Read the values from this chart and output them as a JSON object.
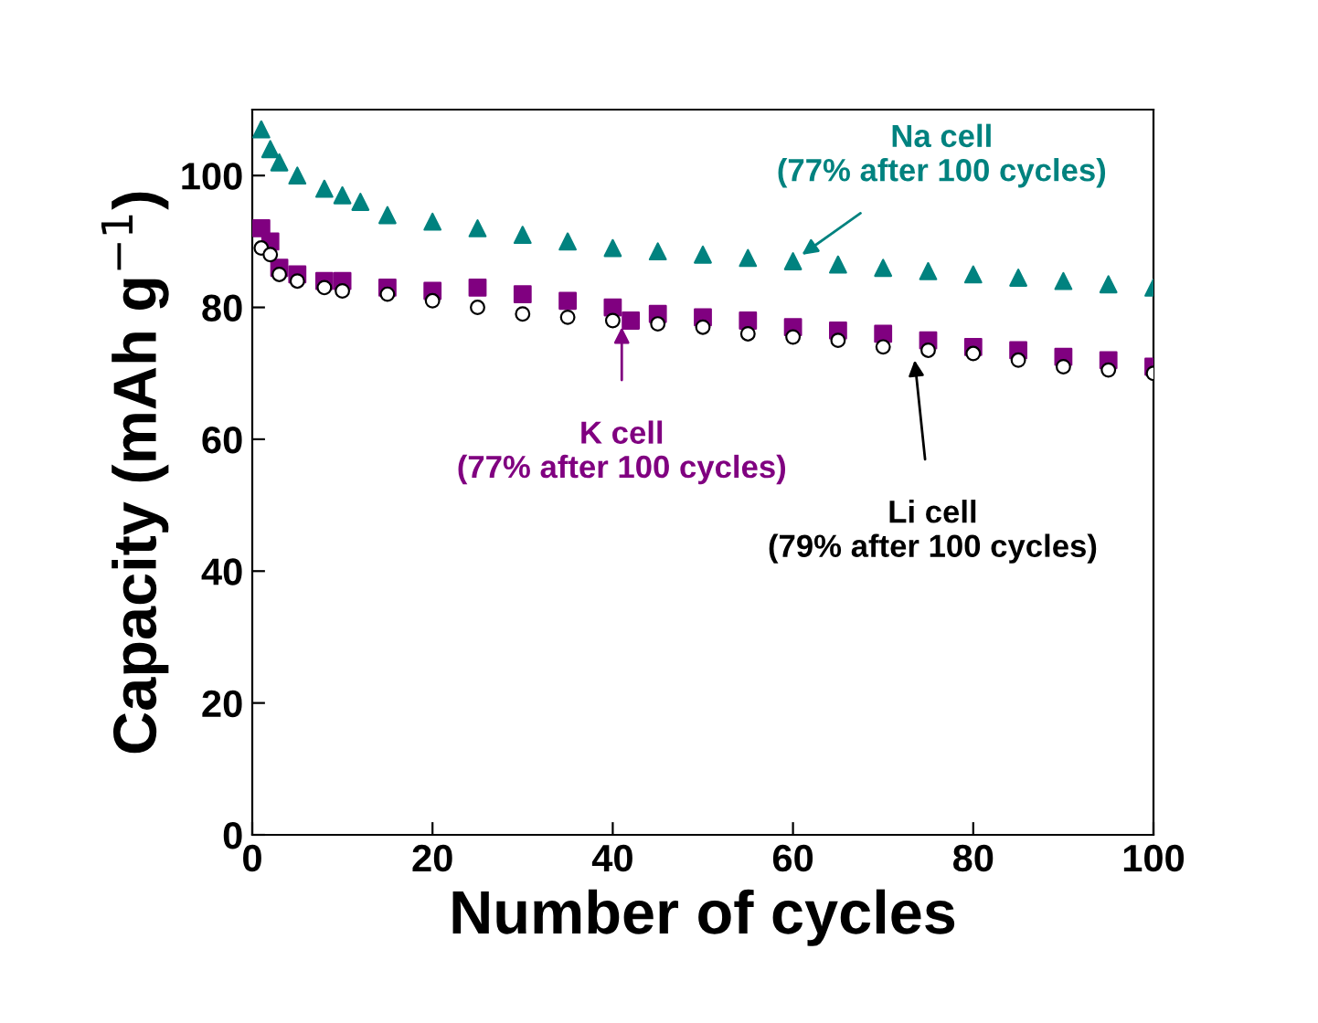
{
  "chart_data": {
    "type": "scatter",
    "xlabel": "Number of cycles",
    "ylabel": "Capacity (mAh g$^{−1}$)",
    "xlim": [
      0,
      100
    ],
    "xticks": [
      0,
      20,
      40,
      60,
      80,
      100
    ],
    "ylim": [
      0,
      110
    ],
    "yticks": [
      0,
      20,
      40,
      60,
      80,
      100
    ],
    "grid": false,
    "legend": false,
    "series": [
      {
        "marker": "triangle",
        "color": "#00827f",
        "x": [
          1,
          2,
          3,
          5,
          8,
          10,
          12,
          15,
          20,
          25,
          30,
          35,
          40,
          45,
          50,
          55,
          60,
          65,
          70,
          75,
          80,
          85,
          90,
          95,
          100
        ],
        "values": [
          107,
          104,
          102,
          100,
          98,
          97,
          96,
          94,
          93,
          92,
          91,
          90,
          89,
          88.5,
          88,
          87.5,
          87,
          86.5,
          86,
          85.5,
          85,
          84.5,
          84,
          83.5,
          83
        ]
      },
      {
        "marker": "square",
        "color": "#800080",
        "x": [
          1,
          2,
          3,
          5,
          8,
          10,
          15,
          20,
          25,
          30,
          35,
          40,
          42,
          45,
          50,
          55,
          60,
          65,
          70,
          75,
          80,
          85,
          90,
          95,
          100
        ],
        "values": [
          92,
          90,
          86,
          85,
          84,
          84,
          83,
          82.5,
          83,
          82,
          81,
          80,
          78,
          79,
          78.5,
          78,
          77,
          76.5,
          76,
          75,
          74,
          73.5,
          72.5,
          72,
          71
        ]
      },
      {
        "marker": "circle",
        "color": "#000000",
        "x": [
          1,
          2,
          3,
          5,
          8,
          10,
          15,
          20,
          25,
          30,
          35,
          40,
          45,
          50,
          55,
          60,
          65,
          70,
          75,
          80,
          85,
          90,
          95,
          100
        ],
        "values": [
          89,
          88,
          85,
          84,
          83,
          82.5,
          82,
          81,
          80,
          79,
          78.5,
          78,
          77.5,
          77,
          76,
          75.5,
          75,
          74,
          73.5,
          73,
          72,
          71,
          70.5,
          70
        ]
      }
    ],
    "annotations": [
      {
        "text": "Na cell\n(77% after 100 cycles)",
        "x": 61,
        "y": 88
      },
      {
        "text": "K cell\n(77% after 100 cycles)",
        "x": 41,
        "y": 77
      },
      {
        "text": "Li cell\n(79% after 100 cycles)",
        "x": 73.5,
        "y": 72
      }
    ]
  }
}
